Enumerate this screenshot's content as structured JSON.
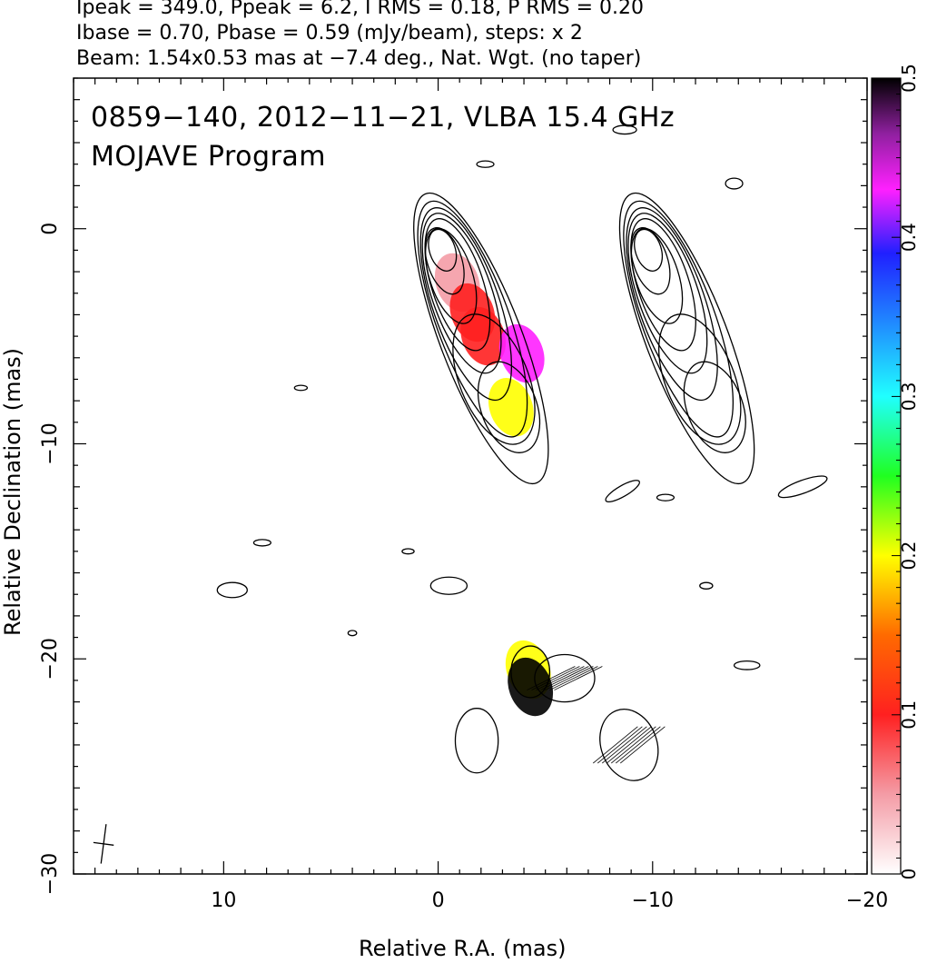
{
  "header": {
    "line1": "Ipeak = 349.0, Ppeak = 6.2, I RMS = 0.18, P RMS = 0.20",
    "line2": "Ibase = 0.70, Pbase = 0.59 (mJy/beam), steps: x 2",
    "line3": "Beam: 1.54x0.53 mas at −7.4 deg., Nat. Wgt. (no taper)"
  },
  "overlay": {
    "line1": "0859−140, 2012−11−21, VLBA 15.4 GHz",
    "line2": "MOJAVE Program"
  },
  "chart_data": {
    "type": "contour",
    "xlabel": "Relative R.A. (mas)",
    "ylabel": "Relative Declination (mas)",
    "xlim": [
      17,
      -20
    ],
    "ylim": [
      -30,
      7
    ],
    "x_ticks": [
      {
        "value": 10,
        "label": "10"
      },
      {
        "value": 0,
        "label": "0"
      },
      {
        "value": -10,
        "label": "−10"
      },
      {
        "value": -20,
        "label": "−20"
      }
    ],
    "y_ticks": [
      {
        "value": 0,
        "label": "0"
      },
      {
        "value": -10,
        "label": "−10"
      },
      {
        "value": -20,
        "label": "−20"
      },
      {
        "value": -30,
        "label": "−30"
      }
    ],
    "colorbar": {
      "range": [
        0,
        0.5
      ],
      "ticks": [
        {
          "value": 0,
          "label": "0"
        },
        {
          "value": 0.1,
          "label": "0.1"
        },
        {
          "value": 0.2,
          "label": "0.2"
        },
        {
          "value": 0.3,
          "label": "0.3"
        },
        {
          "value": 0.4,
          "label": "0.4"
        },
        {
          "value": 0.5,
          "label": "0.5"
        }
      ]
    },
    "panels": [
      {
        "name": "left",
        "x_offset": 0
      },
      {
        "name": "right",
        "x_offset": -9.6
      }
    ],
    "core": {
      "x": 0.0,
      "y": -0.6
    },
    "jet_contours": [
      {
        "x": -0.2,
        "y": -1.0,
        "a": 1.0,
        "b": 0.6,
        "angle": -18
      },
      {
        "x": -0.3,
        "y": -1.5,
        "a": 1.6,
        "b": 0.8,
        "angle": -18
      },
      {
        "x": -0.6,
        "y": -2.2,
        "a": 2.3,
        "b": 1.0,
        "angle": -18
      },
      {
        "x": -0.9,
        "y": -2.6,
        "a": 3.2,
        "b": 1.2,
        "angle": -18
      },
      {
        "x": -1.1,
        "y": -3.0,
        "a": 3.9,
        "b": 1.4,
        "angle": -19
      },
      {
        "x": -1.3,
        "y": -3.5,
        "a": 4.7,
        "b": 1.55,
        "angle": -19
      },
      {
        "x": -1.6,
        "y": -4.2,
        "a": 5.8,
        "b": 1.7,
        "angle": -20
      },
      {
        "x": -2.0,
        "y": -5.1,
        "a": 7.2,
        "b": 1.9,
        "angle": -21
      }
    ],
    "extended_contours": [
      {
        "x": -2.6,
        "y": -7.0,
        "a": 3.2,
        "b": 1.6,
        "angle": -22
      },
      {
        "x": -3.3,
        "y": -8.3,
        "a": 2.2,
        "b": 1.3,
        "angle": -20
      }
    ],
    "polarization_colors": [
      {
        "x": -0.3,
        "y": -1.0,
        "value": 0.01
      },
      {
        "x": -0.9,
        "y": -2.5,
        "value": 0.05
      },
      {
        "x": -1.6,
        "y": -3.9,
        "value": 0.1
      },
      {
        "x": -2.1,
        "y": -5.0,
        "value": 0.12
      },
      {
        "x": -3.4,
        "y": -8.3,
        "value": 0.2
      },
      {
        "x": -3.9,
        "y": -5.8,
        "value": 0.45
      },
      {
        "x": -4.2,
        "y": -20.5,
        "value": 0.22
      },
      {
        "x": -4.3,
        "y": -21.3,
        "value": 0.5
      }
    ],
    "blobs": [
      {
        "x": -4.3,
        "y": -20.6,
        "a": 1.2,
        "b": 0.9,
        "angle": 0
      },
      {
        "x": -1.8,
        "y": -23.8,
        "a": 1.5,
        "b": 1.0,
        "angle": 0
      },
      {
        "x": -0.5,
        "y": -16.6,
        "a": 0.4,
        "b": 0.85,
        "angle": 0
      },
      {
        "x": 9.6,
        "y": -16.8,
        "a": 0.35,
        "b": 0.7,
        "angle": 0
      },
      {
        "x": 8.2,
        "y": -14.6,
        "a": 0.15,
        "b": 0.4,
        "angle": 0
      },
      {
        "x": 6.4,
        "y": -7.4,
        "a": 0.12,
        "b": 0.3,
        "angle": 0
      },
      {
        "x": -13.8,
        "y": 2.1,
        "a": 0.25,
        "b": 0.4,
        "angle": 0
      },
      {
        "x": -8.6,
        "y": -12.2,
        "a": 0.25,
        "b": 0.9,
        "angle": -30
      },
      {
        "x": -10.6,
        "y": -12.5,
        "a": 0.15,
        "b": 0.4,
        "angle": 0
      },
      {
        "x": -17.0,
        "y": -12.0,
        "a": 0.3,
        "b": 1.2,
        "angle": -20
      },
      {
        "x": -14.4,
        "y": -20.3,
        "a": 0.2,
        "b": 0.6,
        "angle": 0
      },
      {
        "x": -12.5,
        "y": -16.6,
        "a": 0.15,
        "b": 0.3,
        "angle": 0
      },
      {
        "x": -2.2,
        "y": 3.0,
        "a": 0.15,
        "b": 0.4,
        "angle": 0
      },
      {
        "x": -8.7,
        "y": 4.6,
        "a": 0.2,
        "b": 0.55,
        "angle": 0
      },
      {
        "x": 1.4,
        "y": -15.0,
        "a": 0.12,
        "b": 0.28,
        "angle": 0
      },
      {
        "x": 4.0,
        "y": -18.8,
        "a": 0.12,
        "b": 0.2,
        "angle": 0
      }
    ],
    "right_blobs": [
      {
        "x": -5.9,
        "y": -20.9,
        "a": 1.1,
        "b": 1.4,
        "angle": 0
      },
      {
        "x": -8.9,
        "y": -24.0,
        "a": 1.7,
        "b": 1.3,
        "angle": -20
      }
    ],
    "beam": {
      "x": 15.6,
      "y": -28.6,
      "major": 1.54,
      "minor": 0.53,
      "angle": -7.4
    }
  }
}
